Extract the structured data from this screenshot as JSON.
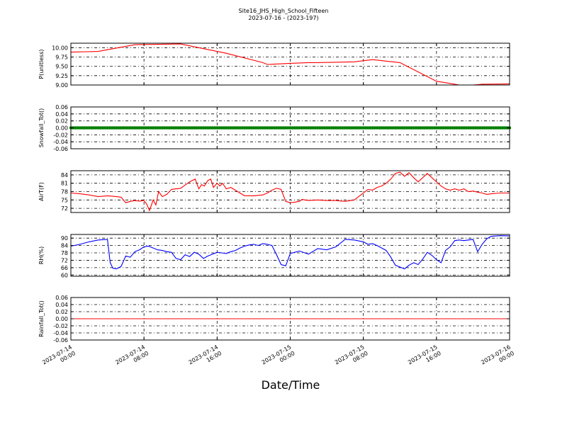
{
  "title": "Site16_JHS_High_School_Fifteen",
  "subtitle": "2023-07-16 - (2023-197)",
  "xlabel": "Date/Time",
  "chart_data": [
    {
      "type": "line",
      "ylabel": "P(unitless)",
      "color": "#ff0000",
      "ylim": [
        9.0,
        10.12
      ],
      "yticks": [
        9.0,
        9.25,
        9.5,
        9.75,
        10.0
      ],
      "yticklabels": [
        "9.00",
        "9.25",
        "9.50",
        "9.75",
        "10.00"
      ],
      "grid": true,
      "x_hours": [
        0,
        3,
        7,
        12,
        14,
        17,
        21,
        21.5,
        24,
        26,
        27,
        31,
        33,
        36,
        40,
        42,
        42.5,
        44,
        45,
        48
      ],
      "y": [
        9.88,
        9.9,
        10.08,
        10.1,
        10.0,
        9.85,
        9.6,
        9.55,
        9.58,
        9.6,
        9.6,
        9.62,
        9.68,
        9.6,
        9.1,
        9.02,
        9.0,
        9.0,
        9.02,
        9.03
      ]
    },
    {
      "type": "line",
      "ylabel": "Snowfall_Tot()",
      "color": "#008000",
      "ylim": [
        -0.06,
        0.06
      ],
      "yticks": [
        -0.06,
        -0.04,
        -0.02,
        0.0,
        0.02,
        0.04,
        0.06
      ],
      "yticklabels": [
        "-0.06",
        "-0.04",
        "-0.02",
        "0.00",
        "0.02",
        "0.04",
        "0.06"
      ],
      "grid": true,
      "markers": true,
      "x_hours": [
        0,
        48
      ],
      "y": [
        0,
        0
      ]
    },
    {
      "type": "line",
      "ylabel": "AirT(F)",
      "color": "#ff0000",
      "ylim": [
        70.5,
        85.5
      ],
      "yticks": [
        72,
        75,
        78,
        81,
        84
      ],
      "yticklabels": [
        "72",
        "75",
        "78",
        "81",
        "84"
      ],
      "grid": true,
      "x_hours": [
        0,
        1,
        2,
        3,
        4,
        5,
        5.5,
        6,
        6.5,
        7,
        7.5,
        8,
        8.3,
        8.6,
        9,
        9.3,
        9.6,
        10,
        10.5,
        11,
        12,
        13,
        13.3,
        13.6,
        14,
        14.3,
        14.6,
        15,
        15.3,
        15.6,
        16,
        16.3,
        16.6,
        17,
        17.5,
        18,
        18.5,
        19,
        20,
        21,
        21.5,
        22,
        22.5,
        23,
        23.5,
        24,
        24.5,
        25,
        25.3,
        25.6,
        26,
        27,
        28,
        29,
        30,
        31,
        32,
        32.5,
        33,
        33.5,
        34,
        34.5,
        35,
        35.5,
        36,
        36.5,
        37,
        37.5,
        38,
        38.5,
        39,
        39.5,
        40,
        40.5,
        41,
        41.5,
        42,
        42.5,
        43,
        43.5,
        44,
        44.5,
        45,
        45.5,
        46,
        47,
        48
      ],
      "y": [
        77.5,
        77.2,
        76.8,
        76.2,
        76.5,
        76.2,
        76.0,
        74.0,
        74.5,
        74.8,
        74.6,
        74.8,
        73.5,
        71.2,
        75.0,
        73.2,
        78.0,
        76.2,
        77.0,
        78.8,
        79.2,
        81.5,
        82.0,
        82.5,
        79.0,
        80.5,
        80.0,
        82.0,
        82.5,
        79.5,
        81.0,
        80.0,
        81.0,
        79.0,
        79.5,
        78.5,
        77.5,
        76.5,
        76.5,
        76.8,
        77.5,
        78.5,
        79.2,
        78.8,
        74.5,
        74.0,
        74.2,
        74.5,
        75.2,
        75.0,
        74.8,
        75.0,
        74.8,
        74.8,
        74.5,
        75.0,
        77.5,
        78.8,
        78.5,
        79.5,
        80.0,
        81.0,
        82.5,
        84.5,
        85.0,
        83.5,
        84.8,
        83.0,
        81.5,
        83.0,
        84.5,
        83.0,
        81.5,
        80.0,
        79.0,
        78.5,
        79.0,
        78.5,
        79.0,
        78.0,
        78.2,
        77.8,
        77.5,
        77.0,
        77.2,
        77.5,
        77.5
      ]
    },
    {
      "type": "line",
      "ylabel": "RH(%)",
      "color": "#0000ff",
      "ylim": [
        59,
        93
      ],
      "yticks": [
        60,
        66,
        72,
        78,
        84,
        90
      ],
      "yticklabels": [
        "60",
        "66",
        "72",
        "78",
        "84",
        "90"
      ],
      "grid": true,
      "x_hours": [
        0,
        1,
        2,
        3,
        4,
        4.3,
        4.6,
        5,
        5.5,
        6,
        6.5,
        7,
        7.5,
        8,
        8.5,
        9,
        9.5,
        10,
        10.5,
        11,
        11.5,
        12,
        12.5,
        13,
        13.5,
        14,
        14.5,
        15,
        15.5,
        16,
        16.5,
        17,
        17.5,
        18,
        18.5,
        19,
        19.5,
        20,
        20.5,
        21,
        21.5,
        22,
        22.5,
        23,
        23.5,
        24,
        24.5,
        25,
        26,
        27,
        28,
        29,
        30,
        31,
        32,
        32.5,
        33,
        33.5,
        34,
        34.5,
        35,
        35.5,
        36,
        36.5,
        37,
        37.5,
        38,
        38.5,
        39,
        39.5,
        40,
        40.5,
        41,
        41.5,
        42,
        42.5,
        43,
        44,
        44.5,
        45,
        45.5,
        46,
        47,
        48
      ],
      "y": [
        83.5,
        85.0,
        87.0,
        88.5,
        89.0,
        70.0,
        65.5,
        65.0,
        67.0,
        75.5,
        74.5,
        79.0,
        80.5,
        83.0,
        83.5,
        82.0,
        80.5,
        80.0,
        79.0,
        78.5,
        73.5,
        72.5,
        76.5,
        75.0,
        78.5,
        77.0,
        73.5,
        75.5,
        77.0,
        78.5,
        78.0,
        77.5,
        79.0,
        80.0,
        82.0,
        83.5,
        84.5,
        85.0,
        84.0,
        85.5,
        85.0,
        84.0,
        76.5,
        68.5,
        67.5,
        77.5,
        78.5,
        79.5,
        77.0,
        81.5,
        80.5,
        83.0,
        89.0,
        88.5,
        87.0,
        85.0,
        85.5,
        84.0,
        82.0,
        80.0,
        74.5,
        68.0,
        66.5,
        65.0,
        68.0,
        70.0,
        68.5,
        73.0,
        78.5,
        76.0,
        72.5,
        70.0,
        80.0,
        83.0,
        88.0,
        88.5,
        88.0,
        89.0,
        79.0,
        85.0,
        89.5,
        91.5,
        92.0,
        91.8
      ]
    },
    {
      "type": "line",
      "ylabel": "Rainfall_Tot()",
      "color": "#ff0000",
      "ylim": [
        -0.06,
        0.06
      ],
      "yticks": [
        -0.06,
        -0.04,
        -0.02,
        0.0,
        0.02,
        0.04,
        0.06
      ],
      "yticklabels": [
        "-0.06",
        "-0.04",
        "-0.02",
        "0.00",
        "0.02",
        "0.04",
        "0.06"
      ],
      "grid": true,
      "x_hours": [
        0,
        48
      ],
      "y": [
        0,
        0
      ]
    }
  ],
  "x_axis": {
    "range_hours": [
      0,
      48
    ],
    "ticks": [
      {
        "hour": 0,
        "line1": "2023-07-14",
        "line2": "00:00"
      },
      {
        "hour": 8,
        "line1": "2023-07-14",
        "line2": "08:00"
      },
      {
        "hour": 16,
        "line1": "2023-07-14",
        "line2": "16:00"
      },
      {
        "hour": 24,
        "line1": "2023-07-15",
        "line2": "00:00"
      },
      {
        "hour": 32,
        "line1": "2023-07-15",
        "line2": "08:00"
      },
      {
        "hour": 40,
        "line1": "2023-07-15",
        "line2": "16:00"
      },
      {
        "hour": 48,
        "line1": "2023-07-16",
        "line2": "00:00"
      }
    ]
  }
}
